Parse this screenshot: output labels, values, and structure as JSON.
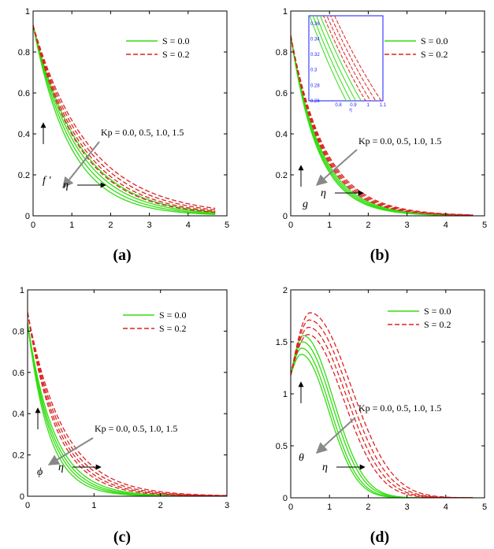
{
  "colors": {
    "s0": "#33dd11",
    "s2": "#dd2222",
    "arrow": "#888888",
    "inset_axis": "#1a1aff"
  },
  "chart_data": [
    {
      "type": "line",
      "panel": "(a)",
      "xlim": [
        0,
        5
      ],
      "ylim": [
        0,
        1
      ],
      "xticks": [
        0,
        1,
        2,
        3,
        4,
        5
      ],
      "yticks": [
        0,
        0.2,
        0.4,
        0.6,
        0.8,
        1
      ],
      "xtick_labels": [
        "0",
        "1",
        "2",
        "3",
        "4",
        "5"
      ],
      "ytick_labels": [
        "0",
        "0.2",
        "0.4",
        "0.6",
        "0.8",
        "1"
      ],
      "x_symbol": "η",
      "y_symbol": "f ′",
      "legend": [
        "S = 0.0",
        "S = 0.2"
      ],
      "legend_position": "top-right",
      "annotation": "Kp = 0.0, 0.5, 1.0, 1.5",
      "shape": "decay",
      "x_end": 4.7,
      "series": [
        {
          "group": "S = 0.0",
          "kp": 0.0,
          "y0": 0.93,
          "k": 0.83
        },
        {
          "group": "S = 0.0",
          "kp": 0.5,
          "y0": 0.93,
          "k": 0.9
        },
        {
          "group": "S = 0.0",
          "kp": 1.0,
          "y0": 0.93,
          "k": 0.97
        },
        {
          "group": "S = 0.0",
          "kp": 1.5,
          "y0": 0.93,
          "k": 1.05
        },
        {
          "group": "S = 0.2",
          "kp": 0.0,
          "y0": 0.93,
          "k": 0.69
        },
        {
          "group": "S = 0.2",
          "kp": 0.5,
          "y0": 0.93,
          "k": 0.74
        },
        {
          "group": "S = 0.2",
          "kp": 1.0,
          "y0": 0.93,
          "k": 0.79
        },
        {
          "group": "S = 0.2",
          "kp": 1.5,
          "y0": 0.93,
          "k": 0.85
        }
      ],
      "caption": "(a)"
    },
    {
      "type": "line",
      "panel": "(b)",
      "xlim": [
        0,
        5
      ],
      "ylim": [
        0,
        1
      ],
      "xticks": [
        0,
        1,
        2,
        3,
        4,
        5
      ],
      "yticks": [
        0,
        0.2,
        0.4,
        0.6,
        0.8,
        1
      ],
      "xtick_labels": [
        "0",
        "1",
        "2",
        "3",
        "4",
        "5"
      ],
      "ytick_labels": [
        "0",
        "0.2",
        "0.4",
        "0.6",
        "0.8",
        "1"
      ],
      "x_symbol": "η",
      "y_symbol": "g",
      "legend": [
        "S = 0.0",
        "S = 0.2"
      ],
      "legend_position": "top-right",
      "annotation": "Kp = 0.0, 0.5, 1.0, 1.5",
      "shape": "decay",
      "x_end": 4.7,
      "series": [
        {
          "group": "S = 0.0",
          "kp": 0.0,
          "y0": 0.88,
          "k": 1.28
        },
        {
          "group": "S = 0.0",
          "kp": 0.5,
          "y0": 0.88,
          "k": 1.33
        },
        {
          "group": "S = 0.0",
          "kp": 1.0,
          "y0": 0.88,
          "k": 1.38
        },
        {
          "group": "S = 0.0",
          "kp": 1.5,
          "y0": 0.88,
          "k": 1.43
        },
        {
          "group": "S = 0.2",
          "kp": 0.0,
          "y0": 0.88,
          "k": 1.12
        },
        {
          "group": "S = 0.2",
          "kp": 0.5,
          "y0": 0.88,
          "k": 1.16
        },
        {
          "group": "S = 0.2",
          "kp": 1.0,
          "y0": 0.88,
          "k": 1.2
        },
        {
          "group": "S = 0.2",
          "kp": 1.5,
          "y0": 0.88,
          "k": 1.24
        }
      ],
      "inset": {
        "xlim": [
          0.6,
          1.1
        ],
        "ylim": [
          0.26,
          0.37
        ],
        "xticks": [
          0.8,
          0.9,
          1,
          1.1
        ],
        "xtick_labels": [
          "0.8",
          "0.9",
          "1",
          "1.1"
        ],
        "yticks": [
          0.26,
          0.28,
          0.3,
          0.32,
          0.34,
          0.36
        ],
        "ytick_labels": [
          "0.26",
          "0.28",
          "0.3",
          "0.32",
          "0.34",
          "0.36"
        ],
        "xlabel": "η"
      },
      "caption": "(b)"
    },
    {
      "type": "line",
      "panel": "(c)",
      "xlim": [
        0,
        3
      ],
      "ylim": [
        0,
        1
      ],
      "xticks": [
        0,
        1,
        2,
        3
      ],
      "yticks": [
        0,
        0.2,
        0.4,
        0.6,
        0.8,
        1
      ],
      "xtick_labels": [
        "0",
        "1",
        "2",
        "3"
      ],
      "ytick_labels": [
        "0",
        "0.2",
        "0.4",
        "0.6",
        "0.8",
        "1"
      ],
      "x_symbol": "η",
      "y_symbol": "ϕ",
      "legend": [
        "S = 0.0",
        "S = 0.2"
      ],
      "legend_position": "top-right",
      "annotation": "Kp = 0.0, 0.5, 1.0, 1.5",
      "shape": "decay",
      "x_end": 3.0,
      "series": [
        {
          "group": "S = 0.0",
          "kp": 0.0,
          "y0": 0.84,
          "k": 2.5
        },
        {
          "group": "S = 0.0",
          "kp": 0.5,
          "y0": 0.84,
          "k": 2.7
        },
        {
          "group": "S = 0.0",
          "kp": 1.0,
          "y0": 0.84,
          "k": 2.9
        },
        {
          "group": "S = 0.0",
          "kp": 1.5,
          "y0": 0.84,
          "k": 3.15
        },
        {
          "group": "S = 0.2",
          "kp": 0.0,
          "y0": 0.89,
          "k": 1.85
        },
        {
          "group": "S = 0.2",
          "kp": 0.5,
          "y0": 0.89,
          "k": 2.0
        },
        {
          "group": "S = 0.2",
          "kp": 1.0,
          "y0": 0.89,
          "k": 2.15
        },
        {
          "group": "S = 0.2",
          "kp": 1.5,
          "y0": 0.89,
          "k": 2.3
        }
      ],
      "caption": "(c)"
    },
    {
      "type": "line",
      "panel": "(d)",
      "xlim": [
        0,
        5
      ],
      "ylim": [
        0,
        2
      ],
      "xticks": [
        0,
        1,
        2,
        3,
        4,
        5
      ],
      "yticks": [
        0,
        0.5,
        1,
        1.5,
        2
      ],
      "xtick_labels": [
        "0",
        "1",
        "2",
        "3",
        "4",
        "5"
      ],
      "ytick_labels": [
        "0",
        "0.5",
        "1",
        "1.5",
        "2"
      ],
      "x_symbol": "η",
      "y_symbol": "θ",
      "legend": [
        "S = 0.0",
        "S = 0.2"
      ],
      "legend_position": "top-right",
      "annotation": "Kp = 0.0, 0.5, 1.0, 1.5",
      "shape": "hump",
      "x_end": 4.7,
      "series": [
        {
          "group": "S = 0.0",
          "kp": 0.0,
          "y0": 1.18,
          "peak": 1.56,
          "xp": 0.32,
          "w": 0.78
        },
        {
          "group": "S = 0.0",
          "kp": 0.5,
          "y0": 1.18,
          "peak": 1.5,
          "xp": 0.3,
          "w": 0.76
        },
        {
          "group": "S = 0.0",
          "kp": 1.0,
          "y0": 1.18,
          "peak": 1.44,
          "xp": 0.28,
          "w": 0.73
        },
        {
          "group": "S = 0.0",
          "kp": 1.5,
          "y0": 1.18,
          "peak": 1.38,
          "xp": 0.27,
          "w": 0.71
        },
        {
          "group": "S = 0.2",
          "kp": 0.0,
          "y0": 1.18,
          "peak": 1.78,
          "xp": 0.5,
          "w": 1.05
        },
        {
          "group": "S = 0.2",
          "kp": 0.5,
          "y0": 1.18,
          "peak": 1.71,
          "xp": 0.48,
          "w": 1.0
        },
        {
          "group": "S = 0.2",
          "kp": 1.0,
          "y0": 1.18,
          "peak": 1.64,
          "xp": 0.46,
          "w": 0.96
        },
        {
          "group": "S = 0.2",
          "kp": 1.5,
          "y0": 1.18,
          "peak": 1.57,
          "xp": 0.44,
          "w": 0.92
        }
      ],
      "caption": "(d)"
    }
  ]
}
